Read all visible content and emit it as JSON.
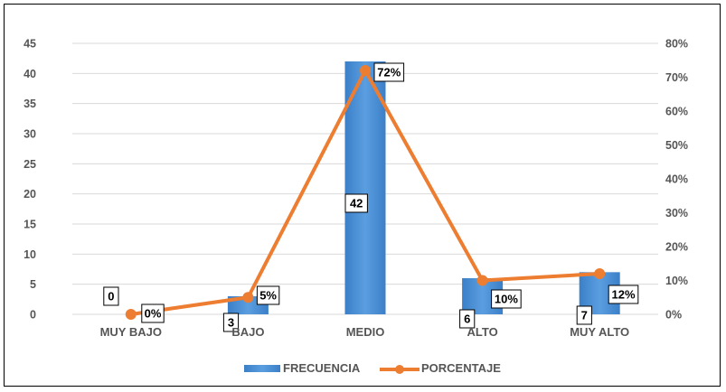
{
  "chart_data": {
    "type": "bar",
    "categories": [
      "MUY BAJO",
      "BAJO",
      "MEDIO",
      "ALTO",
      "MUY ALTO"
    ],
    "series": [
      {
        "name": "FRECUENCIA",
        "type": "bar",
        "axis": "left",
        "values": [
          0,
          3,
          42,
          6,
          7
        ],
        "labels": [
          "0",
          "3",
          "42",
          "6",
          "7"
        ],
        "color": "#4a8fd4"
      },
      {
        "name": "PORCENTAJE",
        "type": "line",
        "axis": "right",
        "values": [
          0,
          5,
          72,
          10,
          12
        ],
        "labels": [
          "0%",
          "5%",
          "72%",
          "10%",
          "12%"
        ],
        "color": "#ed7d31"
      }
    ],
    "y_left": {
      "min": 0,
      "max": 45,
      "ticks": [
        "0",
        "5",
        "10",
        "15",
        "20",
        "25",
        "30",
        "35",
        "40",
        "45"
      ]
    },
    "y_right": {
      "min": 0,
      "max": 80,
      "ticks": [
        "0%",
        "10%",
        "20%",
        "30%",
        "40%",
        "50%",
        "60%",
        "70%",
        "80%"
      ]
    },
    "grid": true,
    "legend": {
      "position": "bottom",
      "items": [
        "FRECUENCIA",
        "PORCENTAJE"
      ]
    }
  }
}
